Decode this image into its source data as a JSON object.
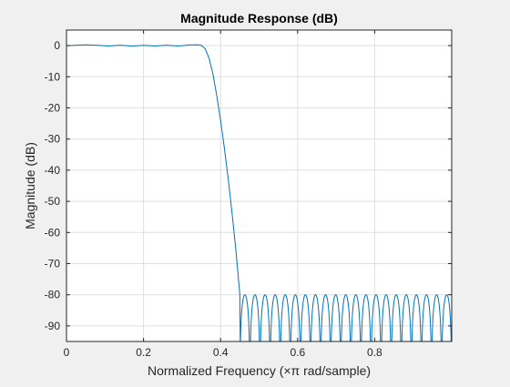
{
  "chart_data": {
    "type": "line",
    "title": "Magnitude Response (dB)",
    "xlabel": "Normalized Frequency  (×π rad/sample)",
    "ylabel": "Magnitude (dB)",
    "xlim": [
      0,
      1
    ],
    "ylim": [
      -95,
      5
    ],
    "x_ticks": [
      0,
      0.2,
      0.4,
      0.6,
      0.8
    ],
    "x_tick_labels": [
      "0",
      "0.2",
      "0.4",
      "0.6",
      "0.8"
    ],
    "y_ticks": [
      0,
      -10,
      -20,
      -30,
      -40,
      -50,
      -60,
      -70,
      -80,
      -90
    ],
    "y_tick_labels": [
      "0",
      "-10",
      "-20",
      "-30",
      "-40",
      "-50",
      "-60",
      "-70",
      "-80",
      "-90"
    ],
    "grid": true,
    "line_color": "#0072bd",
    "series": [
      {
        "passband_edge": 0.34,
        "stopband_edge": 0.45,
        "passband_ripple_db": 0.3,
        "stopband_level_db": -80,
        "stopband_ripple_lobes": 21,
        "curve": [
          [
            0,
            0
          ],
          [
            0.02,
            0.1
          ],
          [
            0.05,
            0.25
          ],
          [
            0.08,
            0.1
          ],
          [
            0.11,
            -0.1
          ],
          [
            0.14,
            0.15
          ],
          [
            0.17,
            -0.15
          ],
          [
            0.2,
            0.1
          ],
          [
            0.23,
            -0.1
          ],
          [
            0.26,
            0.15
          ],
          [
            0.29,
            -0.1
          ],
          [
            0.32,
            0.2
          ],
          [
            0.34,
            0.3
          ],
          [
            0.35,
            0.1
          ],
          [
            0.36,
            -1
          ],
          [
            0.37,
            -4
          ],
          [
            0.38,
            -9
          ],
          [
            0.39,
            -16
          ],
          [
            0.4,
            -24
          ],
          [
            0.41,
            -33
          ],
          [
            0.42,
            -43
          ],
          [
            0.43,
            -54
          ],
          [
            0.44,
            -66
          ],
          [
            0.45,
            -80
          ]
        ]
      }
    ]
  },
  "colors": {
    "figure_background": "#f0f0f0",
    "axes_background": "#ffffff",
    "grid": "#dfdfdf",
    "axis": "#262626",
    "line": "#0072bd"
  }
}
